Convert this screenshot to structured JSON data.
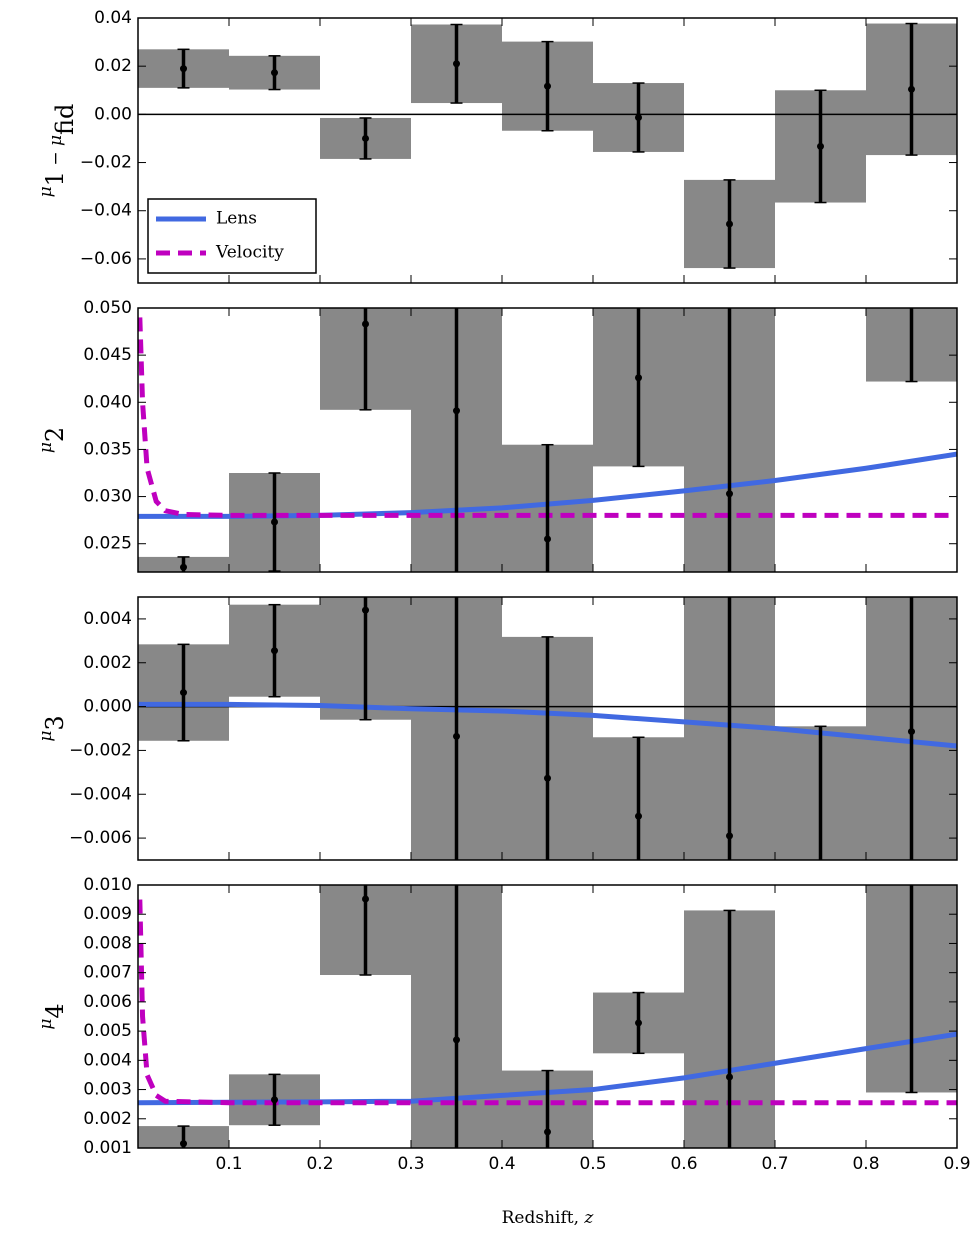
{
  "chart_data": [
    {
      "type": "errorbar",
      "ylabel": [
        {
          "base": "μ",
          "sub": "1"
        },
        {
          "base": " − "
        },
        {
          "base": "μ",
          "sub": "fid"
        }
      ],
      "xlim": [
        0,
        0.9
      ],
      "xticks": [
        0.1,
        0.2,
        0.3,
        0.4,
        0.5,
        0.6,
        0.7,
        0.8,
        0.9
      ],
      "ylim": [
        -0.07,
        0.04
      ],
      "yticks": [
        {
          "value": -0.06,
          "label": "−0.06"
        },
        {
          "value": -0.04,
          "label": "−0.04"
        },
        {
          "value": -0.02,
          "label": "−0.02"
        },
        {
          "value": 0,
          "label": "0.00"
        },
        {
          "value": 0.02,
          "label": "0.02"
        },
        {
          "value": 0.04,
          "label": "0.04"
        }
      ],
      "hline": 0,
      "bin_edges": [
        0,
        0.1,
        0.2,
        0.3,
        0.4,
        0.5,
        0.6,
        0.7,
        0.8,
        0.9
      ],
      "x": [
        0.05,
        0.15,
        0.25,
        0.35,
        0.45,
        0.55,
        0.65,
        0.75,
        0.85
      ],
      "values": [
        0.019,
        0.0173,
        -0.01,
        0.021,
        0.0117,
        -0.0013,
        -0.0455,
        -0.0133,
        0.0104
      ],
      "errors": [
        0.008,
        0.007,
        0.0085,
        0.0163,
        0.0185,
        0.0143,
        0.0183,
        0.0233,
        0.0273
      ],
      "box_color": "#888888",
      "series": [],
      "legend": {
        "loc": "lower left",
        "entries": [
          {
            "name": "Lens",
            "color": "#4169e1",
            "style": "solid"
          },
          {
            "name": "Velocity",
            "color": "#bf00bf",
            "style": "dashed"
          }
        ]
      }
    },
    {
      "type": "errorbar",
      "ylabel": [
        {
          "base": "μ",
          "sub": "2"
        }
      ],
      "xlim": [
        0,
        0.9
      ],
      "xticks": [
        0.1,
        0.2,
        0.3,
        0.4,
        0.5,
        0.6,
        0.7,
        0.8,
        0.9
      ],
      "ylim": [
        0.022,
        0.05
      ],
      "yticks": [
        {
          "value": 0.025,
          "label": "0.025"
        },
        {
          "value": 0.03,
          "label": "0.030"
        },
        {
          "value": 0.035,
          "label": "0.035"
        },
        {
          "value": 0.04,
          "label": "0.040"
        },
        {
          "value": 0.045,
          "label": "0.045"
        },
        {
          "value": 0.05,
          "label": "0.050"
        }
      ],
      "bin_edges": [
        0,
        0.1,
        0.2,
        0.3,
        0.4,
        0.5,
        0.6,
        0.7,
        0.8,
        0.9
      ],
      "x": [
        0.05,
        0.15,
        0.25,
        0.35,
        0.45,
        0.55,
        0.65,
        0.75,
        0.85
      ],
      "values": [
        0.0225,
        0.0273,
        0.0483,
        0.0391,
        0.0255,
        0.0426,
        0.0303,
        null,
        0.051
      ],
      "errors": [
        0.0011,
        0.0052,
        0.0091,
        0.02,
        0.01,
        0.0094,
        0.025,
        null,
        0.0088
      ],
      "box_color": "#888888",
      "series": [
        {
          "color": "#4169e1",
          "style": "solid",
          "x": [
            0,
            0.1,
            0.2,
            0.3,
            0.4,
            0.5,
            0.6,
            0.7,
            0.8,
            0.9
          ],
          "values": [
            0.0279,
            0.0279,
            0.028,
            0.0283,
            0.0288,
            0.0296,
            0.0306,
            0.0317,
            0.033,
            0.0345
          ]
        },
        {
          "color": "#bf00bf",
          "style": "dashed",
          "x": [
            0.002,
            0.005,
            0.01,
            0.02,
            0.03,
            0.05,
            0.1,
            0.9
          ],
          "values": [
            0.049,
            0.04,
            0.033,
            0.0295,
            0.0285,
            0.0281,
            0.028,
            0.028
          ]
        }
      ]
    },
    {
      "type": "errorbar",
      "ylabel": [
        {
          "base": "μ",
          "sub": "3"
        }
      ],
      "xlim": [
        0,
        0.9
      ],
      "xticks": [
        0.1,
        0.2,
        0.3,
        0.4,
        0.5,
        0.6,
        0.7,
        0.8,
        0.9
      ],
      "ylim": [
        -0.007,
        0.005
      ],
      "yticks": [
        {
          "value": -0.006,
          "label": "−0.006"
        },
        {
          "value": -0.004,
          "label": "−0.004"
        },
        {
          "value": -0.002,
          "label": "−0.002"
        },
        {
          "value": 0,
          "label": "0.000"
        },
        {
          "value": 0.002,
          "label": "0.002"
        },
        {
          "value": 0.004,
          "label": "0.004"
        }
      ],
      "hline": 0,
      "bin_edges": [
        0,
        0.1,
        0.2,
        0.3,
        0.4,
        0.5,
        0.6,
        0.7,
        0.8,
        0.9
      ],
      "x": [
        0.05,
        0.15,
        0.25,
        0.35,
        0.45,
        0.55,
        0.65,
        0.75,
        0.85
      ],
      "values": [
        0.00064,
        0.00255,
        0.0044,
        -0.00136,
        -0.00327,
        -0.005,
        -0.0059,
        -0.0075,
        -0.00114
      ],
      "errors": [
        0.0022,
        0.0021,
        0.005,
        0.008,
        0.00645,
        0.0036,
        0.012,
        0.0066,
        0.008
      ],
      "box_color": "#888888",
      "series": [
        {
          "color": "#4169e1",
          "style": "solid",
          "x": [
            0,
            0.1,
            0.2,
            0.3,
            0.4,
            0.5,
            0.6,
            0.7,
            0.8,
            0.9
          ],
          "values": [
            0.0001,
            0.0001,
            5e-05,
            -0.0001,
            -0.0002,
            -0.0004,
            -0.0007,
            -0.001,
            -0.0014,
            -0.0018
          ]
        }
      ]
    },
    {
      "type": "errorbar",
      "ylabel": [
        {
          "base": "μ",
          "sub": "4"
        }
      ],
      "xlabel": [
        {
          "text": "Redshift, "
        },
        {
          "text": "z",
          "italic": true
        }
      ],
      "xlim": [
        0,
        0.9
      ],
      "xticks": [
        0.1,
        0.2,
        0.3,
        0.4,
        0.5,
        0.6,
        0.7,
        0.8,
        0.9
      ],
      "ylim": [
        0.001,
        0.01
      ],
      "yticks": [
        0.001,
        0.002,
        0.003,
        0.004,
        0.005,
        0.006,
        0.007,
        0.008,
        0.009,
        {
          "value": 0.01,
          "label": "0.010"
        }
      ],
      "bin_edges": [
        0,
        0.1,
        0.2,
        0.3,
        0.4,
        0.5,
        0.6,
        0.7,
        0.8,
        0.9
      ],
      "x": [
        0.05,
        0.15,
        0.25,
        0.35,
        0.45,
        0.55,
        0.65,
        0.75,
        0.85
      ],
      "values": [
        0.00115,
        0.00265,
        0.00952,
        0.0047,
        0.00155,
        0.00528,
        0.00343,
        null,
        0.0102
      ],
      "errors": [
        0.0006,
        0.00087,
        0.0026,
        0.006,
        0.0021,
        0.00104,
        0.0057,
        null,
        0.0073
      ],
      "box_color": "#888888",
      "series": [
        {
          "color": "#4169e1",
          "style": "solid",
          "x": [
            0,
            0.2,
            0.3,
            0.4,
            0.5,
            0.6,
            0.7,
            0.8,
            0.9
          ],
          "values": [
            0.00255,
            0.00258,
            0.0026,
            0.0028,
            0.003,
            0.0034,
            0.0039,
            0.0044,
            0.0049
          ]
        },
        {
          "color": "#bf00bf",
          "style": "dashed",
          "x": [
            0.002,
            0.005,
            0.01,
            0.02,
            0.03,
            0.1,
            0.9
          ],
          "values": [
            0.0095,
            0.0055,
            0.0035,
            0.0028,
            0.0026,
            0.00255,
            0.00255
          ]
        }
      ]
    }
  ]
}
